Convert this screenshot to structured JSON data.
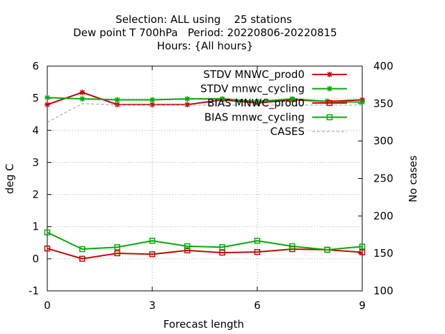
{
  "chart_data": {
    "type": "line",
    "title": [
      "Selection: ALL using    25 stations",
      "Dew point T 700hPa   Period: 20220806-20220815",
      "Hours: {All hours}"
    ],
    "xlabel": "Forecast length",
    "ylabel": "deg C",
    "y2label": "No cases",
    "xlim": [
      0,
      9
    ],
    "ylim": [
      -1,
      6
    ],
    "y2lim": [
      100,
      400
    ],
    "xticks": [
      0,
      3,
      6,
      9
    ],
    "yticks": [
      -1,
      0,
      1,
      2,
      3,
      4,
      5,
      6
    ],
    "y2ticks": [
      100,
      150,
      200,
      250,
      300,
      350,
      400
    ],
    "grid": true,
    "legend_position": "top-right",
    "x": [
      0,
      1,
      2,
      3,
      4,
      5,
      6,
      7,
      8,
      9
    ],
    "series": [
      {
        "name": "STDV MNWC_prod0",
        "color": "#cc0000",
        "marker": "star",
        "axis": "y",
        "values": [
          4.8,
          5.18,
          4.8,
          4.8,
          4.8,
          4.95,
          4.85,
          4.95,
          4.9,
          4.95
        ]
      },
      {
        "name": "STDV mnwc_cycling",
        "color": "#00aa00",
        "marker": "star",
        "axis": "y",
        "values": [
          5.02,
          4.98,
          4.95,
          4.95,
          4.98,
          4.98,
          4.9,
          4.98,
          4.9,
          4.88
        ]
      },
      {
        "name": "BIAS MNWC_prod0",
        "color": "#cc0000",
        "marker": "square",
        "axis": "y",
        "values": [
          0.32,
          0.0,
          0.17,
          0.14,
          0.26,
          0.19,
          0.21,
          0.3,
          0.28,
          0.2
        ]
      },
      {
        "name": "BIAS mnwc_cycling",
        "color": "#00aa00",
        "marker": "square",
        "axis": "y",
        "values": [
          0.82,
          0.3,
          0.36,
          0.56,
          0.39,
          0.36,
          0.56,
          0.39,
          0.28,
          0.38
        ]
      },
      {
        "name": "CASES",
        "color": "#999999",
        "marker": "none",
        "dashed": true,
        "axis": "y2",
        "values": [
          325,
          350,
          348,
          348,
          348,
          348,
          348,
          348,
          348,
          348
        ]
      }
    ]
  }
}
